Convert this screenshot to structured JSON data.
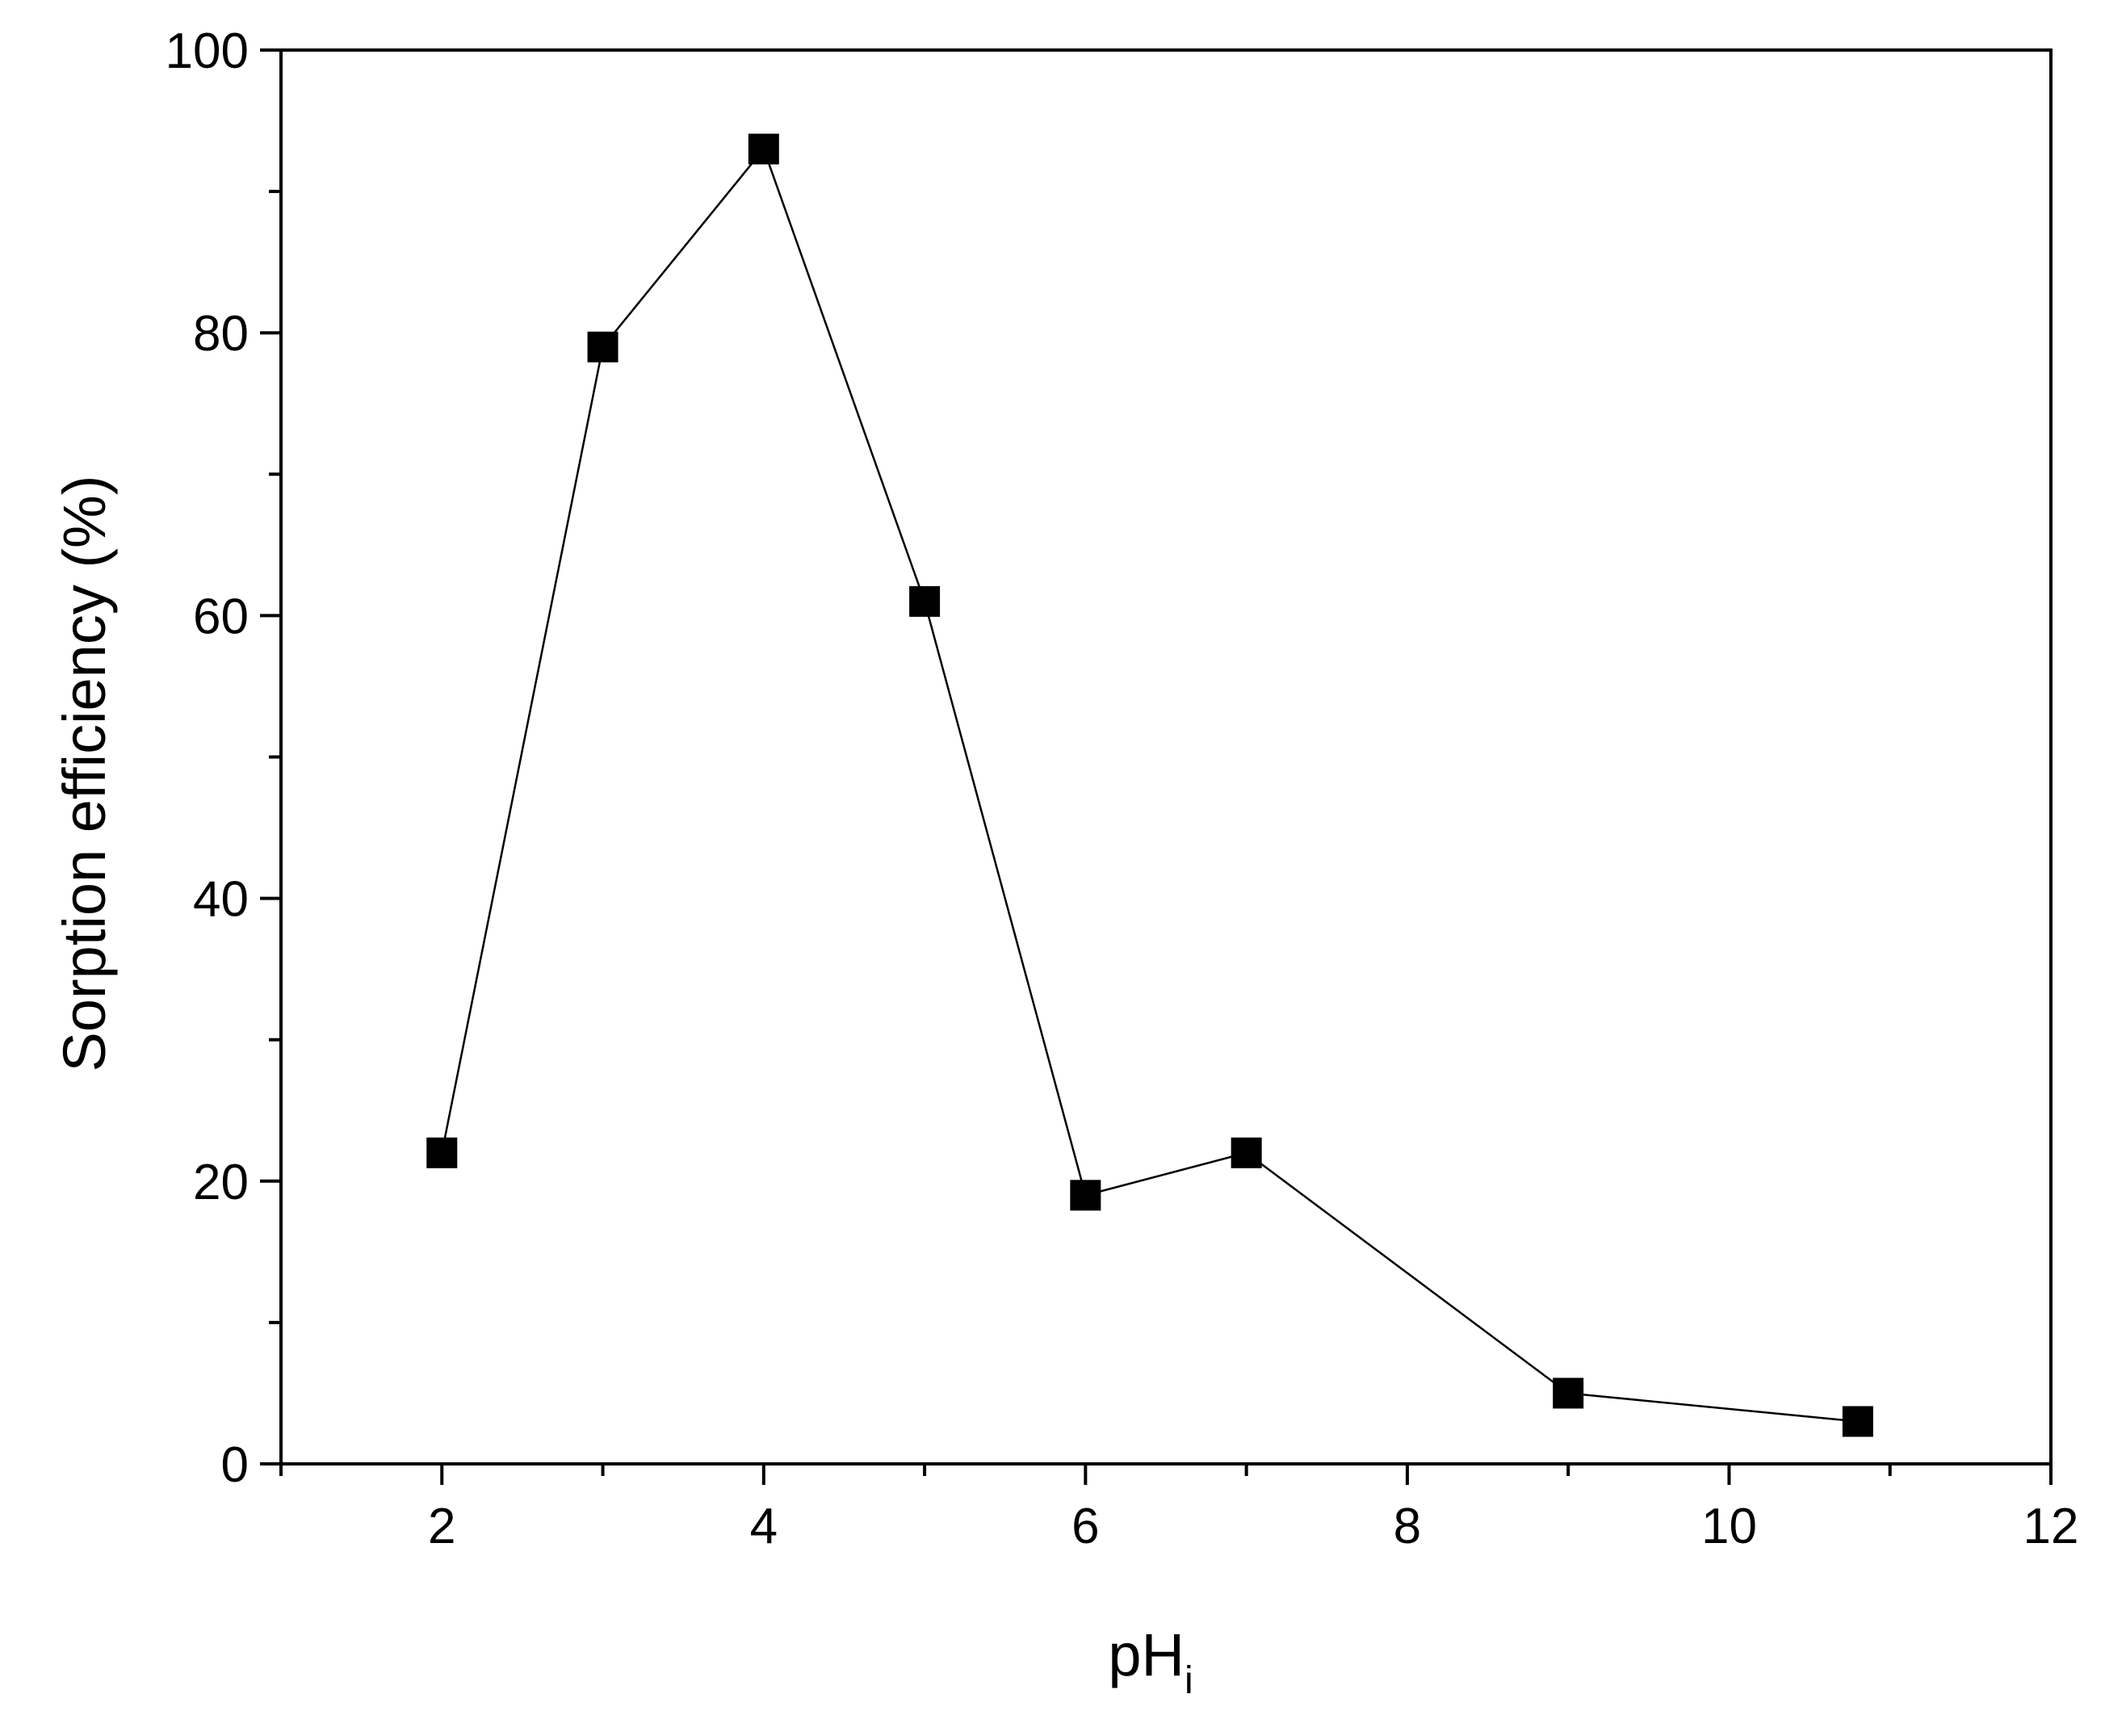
{
  "chart_data": {
    "type": "line",
    "title": "",
    "xlabel": "pH",
    "xlabel_subscript": "i",
    "ylabel": "Sorption efficiency (%)",
    "xlim": [
      1,
      12
    ],
    "ylim": [
      0,
      100
    ],
    "x_major_ticks": [
      2,
      4,
      6,
      8,
      10,
      12
    ],
    "x_minor_ticks": [
      1,
      3,
      5,
      7,
      9,
      11
    ],
    "y_major_ticks": [
      0,
      20,
      40,
      60,
      80,
      100
    ],
    "y_minor_ticks": [
      10,
      30,
      50,
      70,
      90
    ],
    "x_tick_labels": [
      "2",
      "4",
      "6",
      "8",
      "10",
      "12"
    ],
    "y_tick_labels": [
      "0",
      "20",
      "40",
      "60",
      "80",
      "100"
    ],
    "grid": false,
    "legend": "none",
    "marker": "square",
    "color": "#000000",
    "series": [
      {
        "x": [
          2,
          3,
          4,
          5,
          6,
          7,
          9,
          10.8
        ],
        "values": [
          22,
          79,
          93,
          61,
          19,
          22,
          5,
          3
        ]
      }
    ]
  }
}
